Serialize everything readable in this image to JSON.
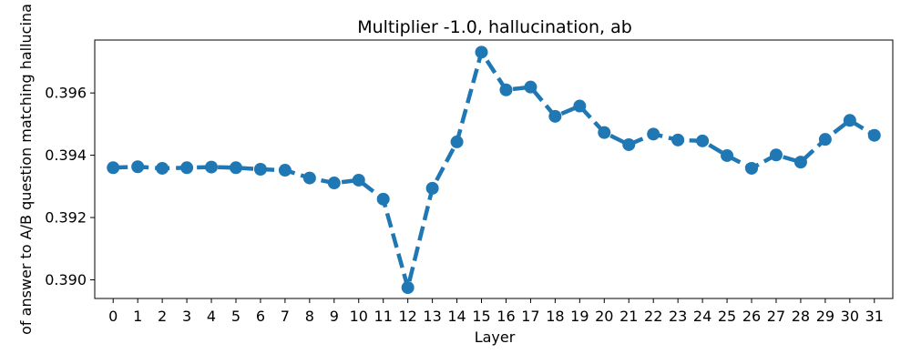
{
  "chart_data": {
    "type": "line",
    "title": "Multiplier -1.0, hallucination, ab",
    "xlabel": "Layer",
    "ylabel": "p(answer matching behavior) of answer to A/B question matching hallucination",
    "ylabel_visible": "of answer to A/B question matching hallucina",
    "x": [
      0,
      1,
      2,
      3,
      4,
      5,
      6,
      7,
      8,
      9,
      10,
      11,
      12,
      13,
      14,
      15,
      16,
      17,
      18,
      19,
      20,
      21,
      22,
      23,
      24,
      25,
      26,
      27,
      28,
      29,
      30,
      31
    ],
    "xticks": [
      "0",
      "1",
      "2",
      "3",
      "4",
      "5",
      "6",
      "7",
      "8",
      "9",
      "10",
      "11",
      "12",
      "13",
      "14",
      "15",
      "16",
      "17",
      "18",
      "19",
      "20",
      "21",
      "22",
      "23",
      "24",
      "25",
      "26",
      "27",
      "28",
      "29",
      "30",
      "31"
    ],
    "series": [
      {
        "values": [
          0.3936,
          0.39363,
          0.39358,
          0.3936,
          0.39362,
          0.3936,
          0.39355,
          0.39352,
          0.39327,
          0.39311,
          0.3932,
          0.39259,
          0.38975,
          0.39294,
          0.39443,
          0.39731,
          0.3961,
          0.39619,
          0.39525,
          0.39558,
          0.39473,
          0.39434,
          0.39468,
          0.39449,
          0.39446,
          0.39399,
          0.39358,
          0.39401,
          0.39378,
          0.39451,
          0.39512,
          0.39464
        ]
      }
    ],
    "yticks": [
      "0.390",
      "0.392",
      "0.394",
      "0.396"
    ],
    "ytick_values": [
      0.39,
      0.392,
      0.394,
      0.396
    ],
    "ylim": [
      0.3894,
      0.3977
    ],
    "xlim": [
      -0.75,
      31.75
    ],
    "grid": false,
    "color": "#1f77b4",
    "line_style": "dashed",
    "marker": "circle"
  }
}
